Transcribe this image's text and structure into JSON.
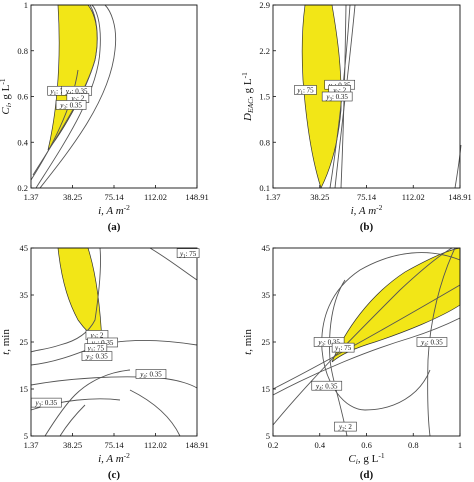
{
  "colors": {
    "region": "#f2e617",
    "curve": "#555555",
    "frame": "#111111"
  },
  "chart_data": [
    {
      "type": "contour",
      "caption": "(a)",
      "xlabel": "i, A m",
      "xlabel_sup": "-2",
      "ylabel": "C",
      "ylabel_sub": "i",
      "ylabel_unit": ", g L",
      "ylabel_sup": "-1",
      "xlim": [
        1.37,
        148.91
      ],
      "ylim": [
        0.2,
        1.0
      ],
      "xticks": [
        "1.37",
        "38.25",
        "75.14",
        "112.02",
        "148.91"
      ],
      "yticks": [
        "0.2",
        "0.4",
        "0.6",
        "0.8",
        "1"
      ],
      "annotations": [
        {
          "label": "y",
          "sub": "1",
          "text": ": 75",
          "x": 26.0,
          "y": 0.625
        },
        {
          "label": "y",
          "sub": "4",
          "text": ": 0.35",
          "x": 42.0,
          "y": 0.625
        },
        {
          "label": "y",
          "sub": "2",
          "text": ": 2",
          "x": 43.0,
          "y": 0.593
        },
        {
          "label": "y",
          "sub": "3",
          "text": ": 0.35",
          "x": 37.0,
          "y": 0.563
        }
      ]
    },
    {
      "type": "contour",
      "caption": "(b)",
      "xlabel": "i, A m",
      "xlabel_sup": "-2",
      "ylabel": "D",
      "ylabel_sub": "EAC",
      "ylabel_unit": ", g L",
      "ylabel_sup": "-1",
      "xlim": [
        1.37,
        148.91
      ],
      "ylim": [
        0.1,
        2.9
      ],
      "xticks": [
        "1.37",
        "38.25",
        "75.14",
        "112.02",
        "148.91"
      ],
      "yticks": [
        "0.1",
        "0.8",
        "1.5",
        "2.2",
        "2.9"
      ],
      "annotations": [
        {
          "label": "y",
          "sub": "4",
          "text": ": 0.35",
          "x": 54.0,
          "y": 1.68
        },
        {
          "label": "y",
          "sub": "1",
          "text": ": 75",
          "x": 27.0,
          "y": 1.6
        },
        {
          "label": "y",
          "sub": "2",
          "text": ": 2",
          "x": 54.0,
          "y": 1.6
        },
        {
          "label": "y",
          "sub": "3",
          "text": ": 0.35",
          "x": 52.0,
          "y": 1.5
        }
      ]
    },
    {
      "type": "contour",
      "caption": "(c)",
      "xlabel": "i, A m",
      "xlabel_sup": "-2",
      "ylabel": "t",
      "ylabel_sub": "",
      "ylabel_unit": ", min",
      "ylabel_sup": "",
      "xlim": [
        1.37,
        148.91
      ],
      "ylim": [
        5,
        45
      ],
      "xticks": [
        "1.37",
        "38.25",
        "75.14",
        "112.02",
        "148.91"
      ],
      "yticks": [
        "5",
        "15",
        "25",
        "35",
        "45"
      ],
      "annotations": [
        {
          "label": "y",
          "sub": "1",
          "text": ": 75",
          "x": 141.0,
          "y": 43.9
        },
        {
          "label": "y",
          "sub": "2",
          "text": ": 2",
          "x": 60.0,
          "y": 26.5
        },
        {
          "label": "y",
          "sub": "4",
          "text": ": 0.35",
          "x": 65.0,
          "y": 24.9
        },
        {
          "label": "y",
          "sub": "1",
          "text": ": 75",
          "x": 59.0,
          "y": 23.7
        },
        {
          "label": "y",
          "sub": "3",
          "text": ": 0.35",
          "x": 60.0,
          "y": 22.0
        },
        {
          "label": "y",
          "sub": "4",
          "text": ": 0.35",
          "x": 108.0,
          "y": 18.2
        },
        {
          "label": "y",
          "sub": "3",
          "text": ": 0.35",
          "x": 15.0,
          "y": 12.1
        }
      ]
    },
    {
      "type": "contour",
      "caption": "(d)",
      "xlabel": "C",
      "xlabel_sub": "i",
      "xlabel_unit": ", g L",
      "xlabel_sup": "-1",
      "ylabel": "t",
      "ylabel_sub": "",
      "ylabel_unit": ", min",
      "ylabel_sup": "",
      "xlim": [
        0.2,
        1.0
      ],
      "ylim": [
        5,
        45
      ],
      "xticks": [
        "0.2",
        "0.4",
        "0.6",
        "0.8",
        "1"
      ],
      "yticks": [
        "5",
        "15",
        "25",
        "35",
        "45"
      ],
      "annotations": [
        {
          "label": "y",
          "sub": "3",
          "text": ": 0.35",
          "x": 0.44,
          "y": 25.0
        },
        {
          "label": "y",
          "sub": "1",
          "text": ": 75",
          "x": 0.5,
          "y": 23.8
        },
        {
          "label": "y",
          "sub": "4",
          "text": ": 0.35",
          "x": 0.88,
          "y": 25.0
        },
        {
          "label": "y",
          "sub": "4",
          "text": ": 0.35",
          "x": 0.43,
          "y": 15.7
        },
        {
          "label": "y",
          "sub": "2",
          "text": ": 2",
          "x": 0.51,
          "y": 7.0
        }
      ]
    }
  ]
}
